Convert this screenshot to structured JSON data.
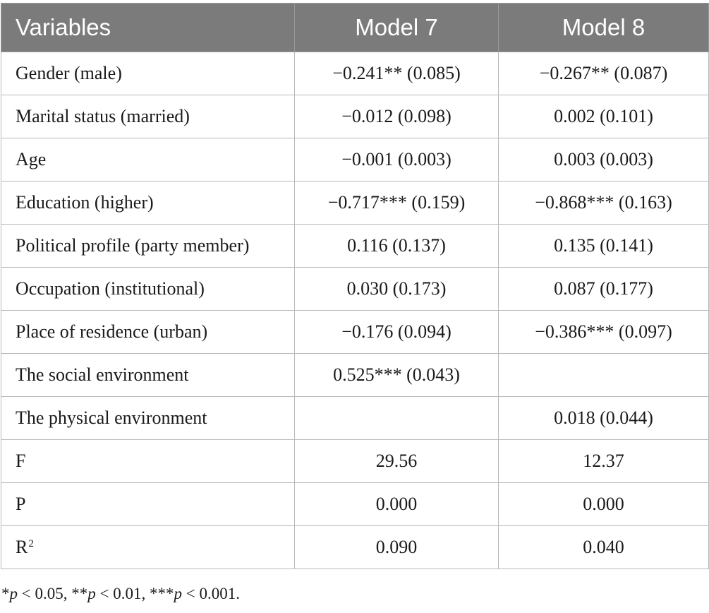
{
  "table": {
    "headers": [
      "Variables",
      "Model 7",
      "Model 8"
    ],
    "rows": [
      {
        "variable": "Gender (male)",
        "model7": "−0.241** (0.085)",
        "model8": "−0.267** (0.087)"
      },
      {
        "variable": "Marital status (married)",
        "model7": "−0.012 (0.098)",
        "model8": "0.002 (0.101)"
      },
      {
        "variable": "Age",
        "model7": "−0.001 (0.003)",
        "model8": "0.003 (0.003)"
      },
      {
        "variable": "Education (higher)",
        "model7": "−0.717*** (0.159)",
        "model8": "−0.868*** (0.163)"
      },
      {
        "variable": "Political profile (party member)",
        "model7": "0.116 (0.137)",
        "model8": "0.135 (0.141)"
      },
      {
        "variable": "Occupation (institutional)",
        "model7": "0.030 (0.173)",
        "model8": "0.087 (0.177)"
      },
      {
        "variable": "Place of residence (urban)",
        "model7": "−0.176 (0.094)",
        "model8": "−0.386*** (0.097)"
      },
      {
        "variable": "The social environment",
        "model7": "0.525*** (0.043)",
        "model8": ""
      },
      {
        "variable": "The physical environment",
        "model7": "",
        "model8": "0.018 (0.044)"
      },
      {
        "variable": "F",
        "model7": "29.56",
        "model8": "12.37"
      },
      {
        "variable": "P",
        "model7": "0.000",
        "model8": "0.000"
      },
      {
        "variable": "R",
        "variable_superscript": "2",
        "model7": "0.090",
        "model8": "0.040"
      }
    ]
  },
  "footnote": {
    "parts": [
      {
        "text": "*",
        "italic": false
      },
      {
        "text": "p",
        "italic": true
      },
      {
        "text": " < 0.05, **",
        "italic": false
      },
      {
        "text": "p",
        "italic": true
      },
      {
        "text": " < 0.01, ***",
        "italic": false
      },
      {
        "text": "p",
        "italic": true
      },
      {
        "text": " < 0.001.",
        "italic": false
      }
    ]
  },
  "colors": {
    "header_background": "#7b7b7b",
    "header_text": "#ffffff",
    "grid_line": "#b9b9b9"
  }
}
